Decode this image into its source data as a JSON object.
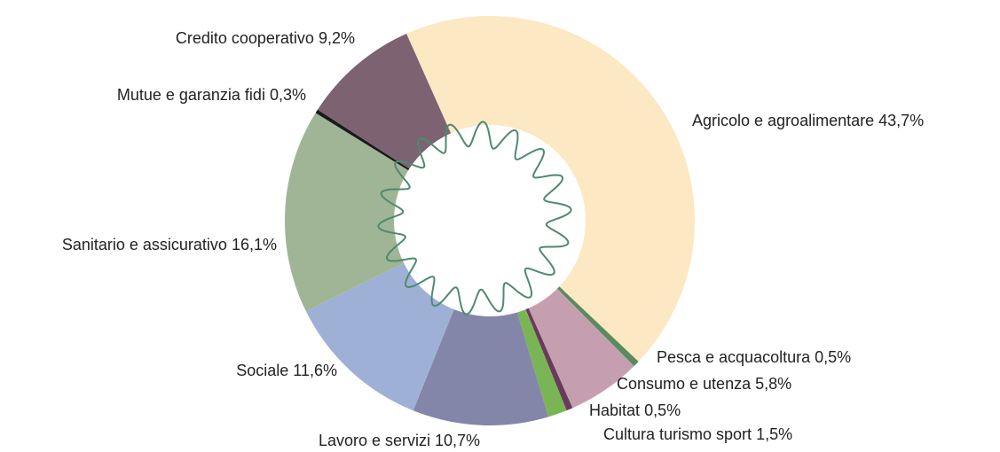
{
  "chart_data": {
    "type": "donut",
    "categories": [
      "Agricolo e agroalimentare",
      "Pesca e acquacoltura",
      "Consumo e utenza",
      "Habitat",
      "Cultura turismo sport",
      "Lavoro e servizi",
      "Sociale",
      "Sanitario e assicurativo",
      "Mutue e garanzia fidi",
      "Credito cooperativo"
    ],
    "values": [
      43.7,
      0.5,
      5.8,
      0.5,
      1.5,
      10.7,
      11.6,
      16.1,
      0.3,
      9.2
    ],
    "value_labels": [
      "43,7%",
      "0,5%",
      "5,8%",
      "0,5%",
      "1,5%",
      "10,7%",
      "11,6%",
      "16,1%",
      "0,3%",
      "9,2%"
    ],
    "colors": [
      "#fde8c4",
      "#5a8a5e",
      "#c59fb0",
      "#6a3a5a",
      "#7ab555",
      "#8386a8",
      "#9eb0d5",
      "#a0b596",
      "#1a1a1a",
      "#7d6272"
    ]
  }
}
